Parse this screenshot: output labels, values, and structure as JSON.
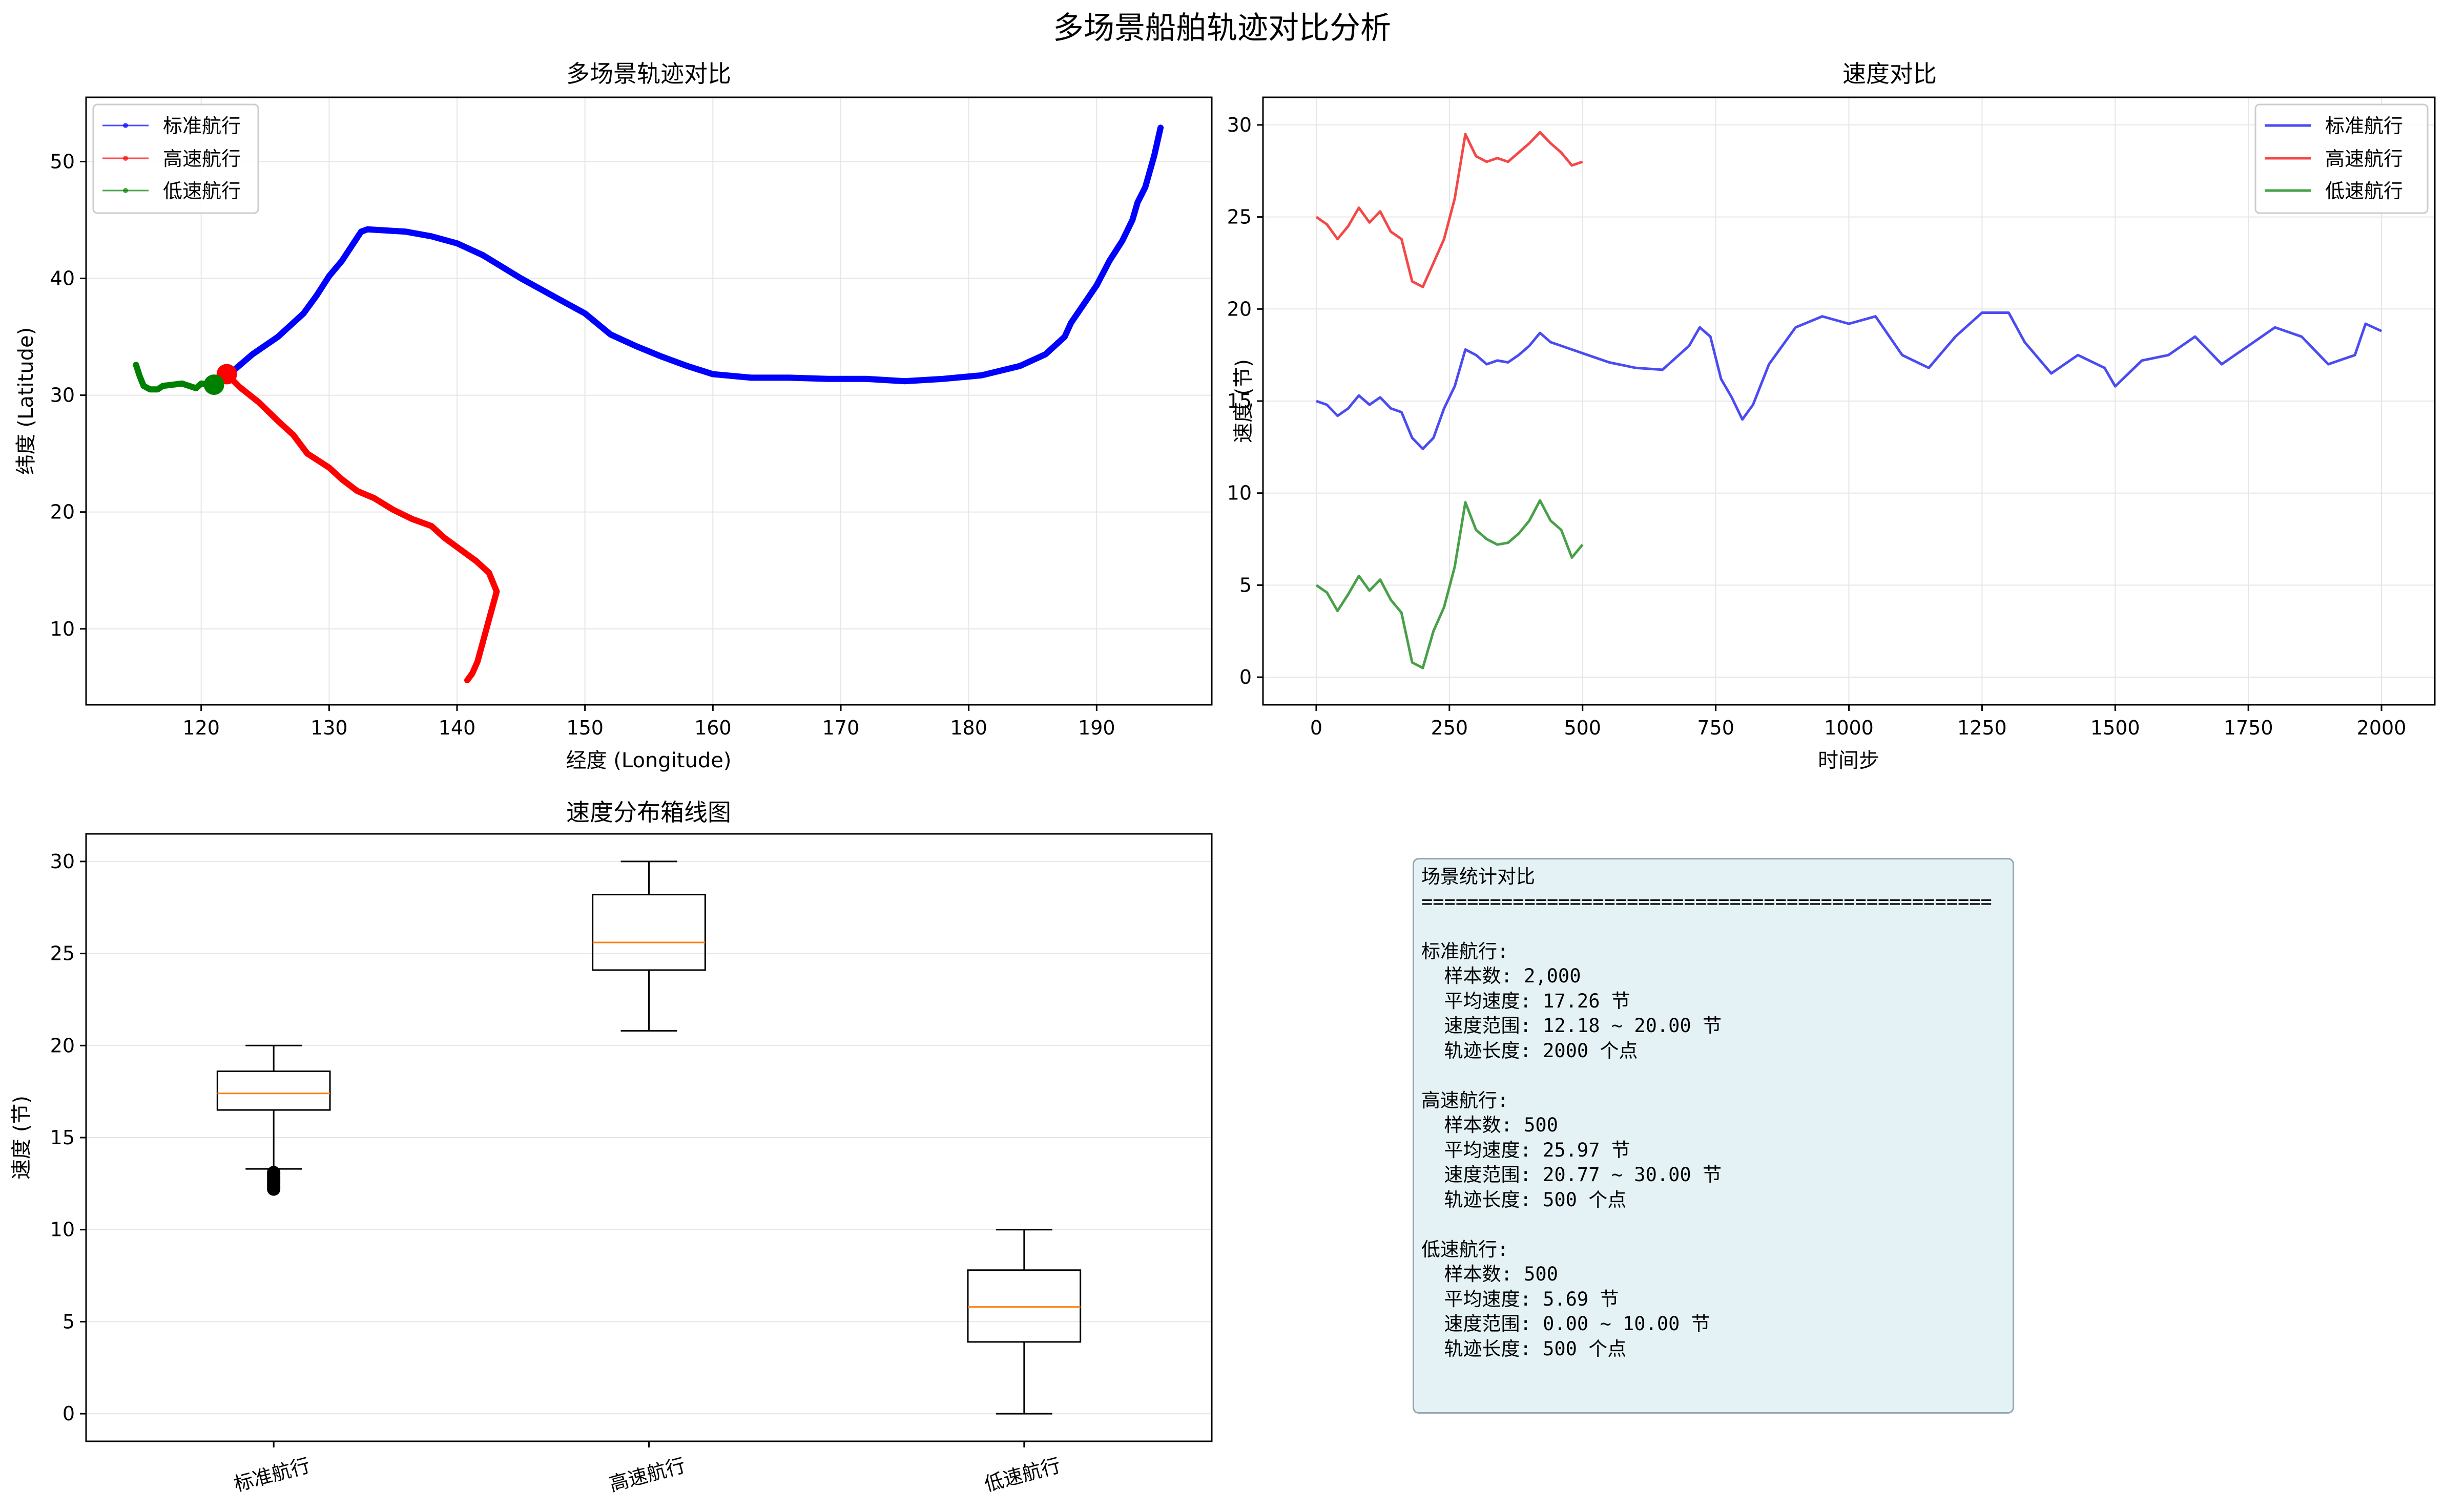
{
  "page_title": "多场景船舶轨迹对比分析",
  "colors": {
    "standard": "#0000ff",
    "high_speed": "#ff0000",
    "low_speed": "#008000",
    "speed_standard": "#4b4bf2",
    "speed_high": "#f44848",
    "speed_low": "#48a048",
    "median": "#ff7f0e",
    "grid": "#e6e6e6",
    "stats_bg": "#e4f2f5"
  },
  "chart_data": [
    {
      "type": "line",
      "title": "多场景轨迹对比",
      "xlabel": "经度 (Longitude)",
      "ylabel": "纬度 (Latitude)",
      "xlim": [
        111,
        199
      ],
      "ylim": [
        3.5,
        55.5
      ],
      "xticks": [
        120,
        130,
        140,
        150,
        160,
        170,
        180,
        190
      ],
      "yticks": [
        10,
        20,
        30,
        40,
        50
      ],
      "grid": true,
      "legend_position": "top-left",
      "series": [
        {
          "name": "标准航行",
          "color": "#0000ff",
          "points": [
            [
              121,
              30.9
            ],
            [
              122.2,
              31.8
            ],
            [
              124,
              33.5
            ],
            [
              126,
              35
            ],
            [
              128,
              37
            ],
            [
              129,
              38.5
            ],
            [
              130,
              40.2
            ],
            [
              131,
              41.5
            ],
            [
              132.5,
              44
            ],
            [
              133,
              44.2
            ],
            [
              136,
              44
            ],
            [
              138,
              43.6
            ],
            [
              140,
              43
            ],
            [
              142,
              42
            ],
            [
              145,
              40
            ],
            [
              148,
              38.2
            ],
            [
              150,
              37
            ],
            [
              152,
              35.2
            ],
            [
              154,
              34.2
            ],
            [
              156,
              33.3
            ],
            [
              158,
              32.5
            ],
            [
              160,
              31.8
            ],
            [
              163,
              31.5
            ],
            [
              166,
              31.5
            ],
            [
              169,
              31.4
            ],
            [
              172,
              31.4
            ],
            [
              175,
              31.2
            ],
            [
              178,
              31.4
            ],
            [
              181,
              31.7
            ],
            [
              184,
              32.5
            ],
            [
              186,
              33.5
            ],
            [
              187.5,
              35
            ],
            [
              188,
              36.2
            ],
            [
              189,
              37.8
            ],
            [
              190,
              39.4
            ],
            [
              191,
              41.5
            ],
            [
              192,
              43.2
            ],
            [
              192.8,
              45
            ],
            [
              193.2,
              46.5
            ],
            [
              193.8,
              47.8
            ],
            [
              194.5,
              50.5
            ],
            [
              195,
              52.9
            ]
          ]
        },
        {
          "name": "高速航行",
          "color": "#ff0000",
          "points": [
            [
              122,
              31.8
            ],
            [
              123,
              30.7
            ],
            [
              124.5,
              29.4
            ],
            [
              126,
              27.8
            ],
            [
              127.2,
              26.6
            ],
            [
              128.3,
              25
            ],
            [
              130,
              23.8
            ],
            [
              131,
              22.8
            ],
            [
              132.2,
              21.8
            ],
            [
              133.5,
              21.2
            ],
            [
              135,
              20.2
            ],
            [
              136.5,
              19.4
            ],
            [
              138,
              18.8
            ],
            [
              139,
              17.8
            ],
            [
              140.5,
              16.6
            ],
            [
              141.5,
              15.8
            ],
            [
              142.5,
              14.8
            ],
            [
              143.1,
              13.2
            ],
            [
              142.9,
              12.4
            ],
            [
              142.4,
              10.4
            ],
            [
              141.6,
              7.2
            ],
            [
              141.2,
              6.2
            ],
            [
              140.8,
              5.6
            ]
          ]
        },
        {
          "name": "低速航行",
          "color": "#008000",
          "points": [
            [
              121,
              30.9
            ],
            [
              120,
              31
            ],
            [
              119.6,
              30.6
            ],
            [
              118.5,
              31
            ],
            [
              117,
              30.8
            ],
            [
              116.6,
              30.5
            ],
            [
              116,
              30.5
            ],
            [
              115.5,
              30.8
            ],
            [
              115.2,
              31.6
            ],
            [
              114.9,
              32.6
            ]
          ]
        }
      ],
      "start_markers": [
        {
          "series": "高速航行",
          "x": 122,
          "y": 31.8
        },
        {
          "series": "低速航行",
          "x": 121,
          "y": 30.9
        }
      ]
    },
    {
      "type": "line",
      "title": "速度对比",
      "xlabel": "时间步",
      "ylabel": "速度 (节)",
      "xlim": [
        -100,
        2100
      ],
      "ylim": [
        -1.5,
        31.5
      ],
      "xticks": [
        0,
        250,
        500,
        750,
        1000,
        1250,
        1500,
        1750,
        2000
      ],
      "yticks": [
        0,
        5,
        10,
        15,
        20,
        25,
        30
      ],
      "grid": true,
      "legend_position": "top-right",
      "series": [
        {
          "name": "标准航行",
          "color": "#4b4bf2",
          "points": [
            [
              0,
              15
            ],
            [
              20,
              14.8
            ],
            [
              40,
              14.2
            ],
            [
              60,
              14.6
            ],
            [
              80,
              15.3
            ],
            [
              100,
              14.8
            ],
            [
              120,
              15.2
            ],
            [
              140,
              14.6
            ],
            [
              160,
              14.4
            ],
            [
              180,
              13
            ],
            [
              200,
              12.4
            ],
            [
              220,
              13
            ],
            [
              240,
              14.6
            ],
            [
              260,
              15.8
            ],
            [
              280,
              17.8
            ],
            [
              300,
              17.5
            ],
            [
              320,
              17
            ],
            [
              340,
              17.2
            ],
            [
              360,
              17.1
            ],
            [
              380,
              17.5
            ],
            [
              400,
              18
            ],
            [
              420,
              18.7
            ],
            [
              440,
              18.2
            ],
            [
              460,
              18
            ],
            [
              480,
              17.8
            ],
            [
              500,
              17.6
            ],
            [
              550,
              17.1
            ],
            [
              600,
              16.8
            ],
            [
              650,
              16.7
            ],
            [
              700,
              18
            ],
            [
              720,
              19
            ],
            [
              740,
              18.5
            ],
            [
              760,
              16.2
            ],
            [
              780,
              15.2
            ],
            [
              800,
              14
            ],
            [
              820,
              14.8
            ],
            [
              850,
              17
            ],
            [
              900,
              19
            ],
            [
              950,
              19.6
            ],
            [
              1000,
              19.2
            ],
            [
              1050,
              19.6
            ],
            [
              1100,
              17.5
            ],
            [
              1150,
              16.8
            ],
            [
              1200,
              18.5
            ],
            [
              1250,
              19.8
            ],
            [
              1300,
              19.8
            ],
            [
              1330,
              18.2
            ],
            [
              1380,
              16.5
            ],
            [
              1430,
              17.5
            ],
            [
              1480,
              16.8
            ],
            [
              1500,
              15.8
            ],
            [
              1550,
              17.2
            ],
            [
              1600,
              17.5
            ],
            [
              1650,
              18.5
            ],
            [
              1700,
              17
            ],
            [
              1750,
              18
            ],
            [
              1800,
              19
            ],
            [
              1850,
              18.5
            ],
            [
              1900,
              17
            ],
            [
              1950,
              17.5
            ],
            [
              1970,
              19.2
            ],
            [
              2000,
              18.8
            ]
          ]
        },
        {
          "name": "高速航行",
          "color": "#f44848",
          "points": [
            [
              0,
              25
            ],
            [
              20,
              24.6
            ],
            [
              40,
              23.8
            ],
            [
              60,
              24.5
            ],
            [
              80,
              25.5
            ],
            [
              100,
              24.7
            ],
            [
              120,
              25.3
            ],
            [
              140,
              24.2
            ],
            [
              160,
              23.8
            ],
            [
              180,
              21.5
            ],
            [
              200,
              21.2
            ],
            [
              220,
              22.5
            ],
            [
              240,
              23.8
            ],
            [
              260,
              26
            ],
            [
              280,
              29.5
            ],
            [
              300,
              28.3
            ],
            [
              320,
              28
            ],
            [
              340,
              28.2
            ],
            [
              360,
              28
            ],
            [
              380,
              28.5
            ],
            [
              400,
              29
            ],
            [
              420,
              29.6
            ],
            [
              440,
              29
            ],
            [
              460,
              28.5
            ],
            [
              480,
              27.8
            ],
            [
              500,
              28
            ]
          ]
        },
        {
          "name": "低速航行",
          "color": "#48a048",
          "points": [
            [
              0,
              5
            ],
            [
              20,
              4.6
            ],
            [
              40,
              3.6
            ],
            [
              60,
              4.5
            ],
            [
              80,
              5.5
            ],
            [
              100,
              4.7
            ],
            [
              120,
              5.3
            ],
            [
              140,
              4.2
            ],
            [
              160,
              3.5
            ],
            [
              180,
              0.8
            ],
            [
              200,
              0.5
            ],
            [
              220,
              2.5
            ],
            [
              240,
              3.8
            ],
            [
              260,
              6
            ],
            [
              280,
              9.5
            ],
            [
              300,
              8
            ],
            [
              320,
              7.5
            ],
            [
              340,
              7.2
            ],
            [
              360,
              7.3
            ],
            [
              380,
              7.8
            ],
            [
              400,
              8.5
            ],
            [
              420,
              9.6
            ],
            [
              440,
              8.5
            ],
            [
              460,
              8
            ],
            [
              480,
              6.5
            ],
            [
              500,
              7.2
            ]
          ]
        }
      ]
    },
    {
      "type": "box",
      "title": "速度分布箱线图",
      "ylabel": "速度 (节)",
      "categories": [
        "标准航行",
        "高速航行",
        "低速航行"
      ],
      "ylim": [
        -1.5,
        31.5
      ],
      "yticks": [
        0,
        5,
        10,
        15,
        20,
        25,
        30
      ],
      "grid": true,
      "boxes": [
        {
          "name": "标准航行",
          "whisker_low": 13.3,
          "q1": 16.5,
          "median": 17.4,
          "q3": 18.6,
          "whisker_high": 20.0,
          "outliers": [
            12.2,
            12.3,
            12.4,
            12.5,
            12.6,
            12.7,
            12.8,
            12.9,
            13.0,
            13.1
          ]
        },
        {
          "name": "高速航行",
          "whisker_low": 20.8,
          "q1": 24.1,
          "median": 25.6,
          "q3": 28.2,
          "whisker_high": 30.0,
          "outliers": []
        },
        {
          "name": "低速航行",
          "whisker_low": 0.0,
          "q1": 3.9,
          "median": 5.8,
          "q3": 7.8,
          "whisker_high": 10.0,
          "outliers": []
        }
      ]
    }
  ],
  "stats": {
    "title": "场景统计对比",
    "divider": "==================================================",
    "scenarios": [
      {
        "name": "标准航行:",
        "samples": "  样本数: 2,000",
        "avg": "  平均速度: 17.26 节",
        "range": "  速度范围: 12.18 ~ 20.00 节",
        "length": "  轨迹长度: 2000 个点"
      },
      {
        "name": "高速航行:",
        "samples": "  样本数: 500",
        "avg": "  平均速度: 25.97 节",
        "range": "  速度范围: 20.77 ~ 30.00 节",
        "length": "  轨迹长度: 500 个点"
      },
      {
        "name": "低速航行:",
        "samples": "  样本数: 500",
        "avg": "  平均速度: 5.69 节",
        "range": "  速度范围: 0.00 ~ 10.00 节",
        "length": "  轨迹长度: 500 个点"
      }
    ]
  }
}
